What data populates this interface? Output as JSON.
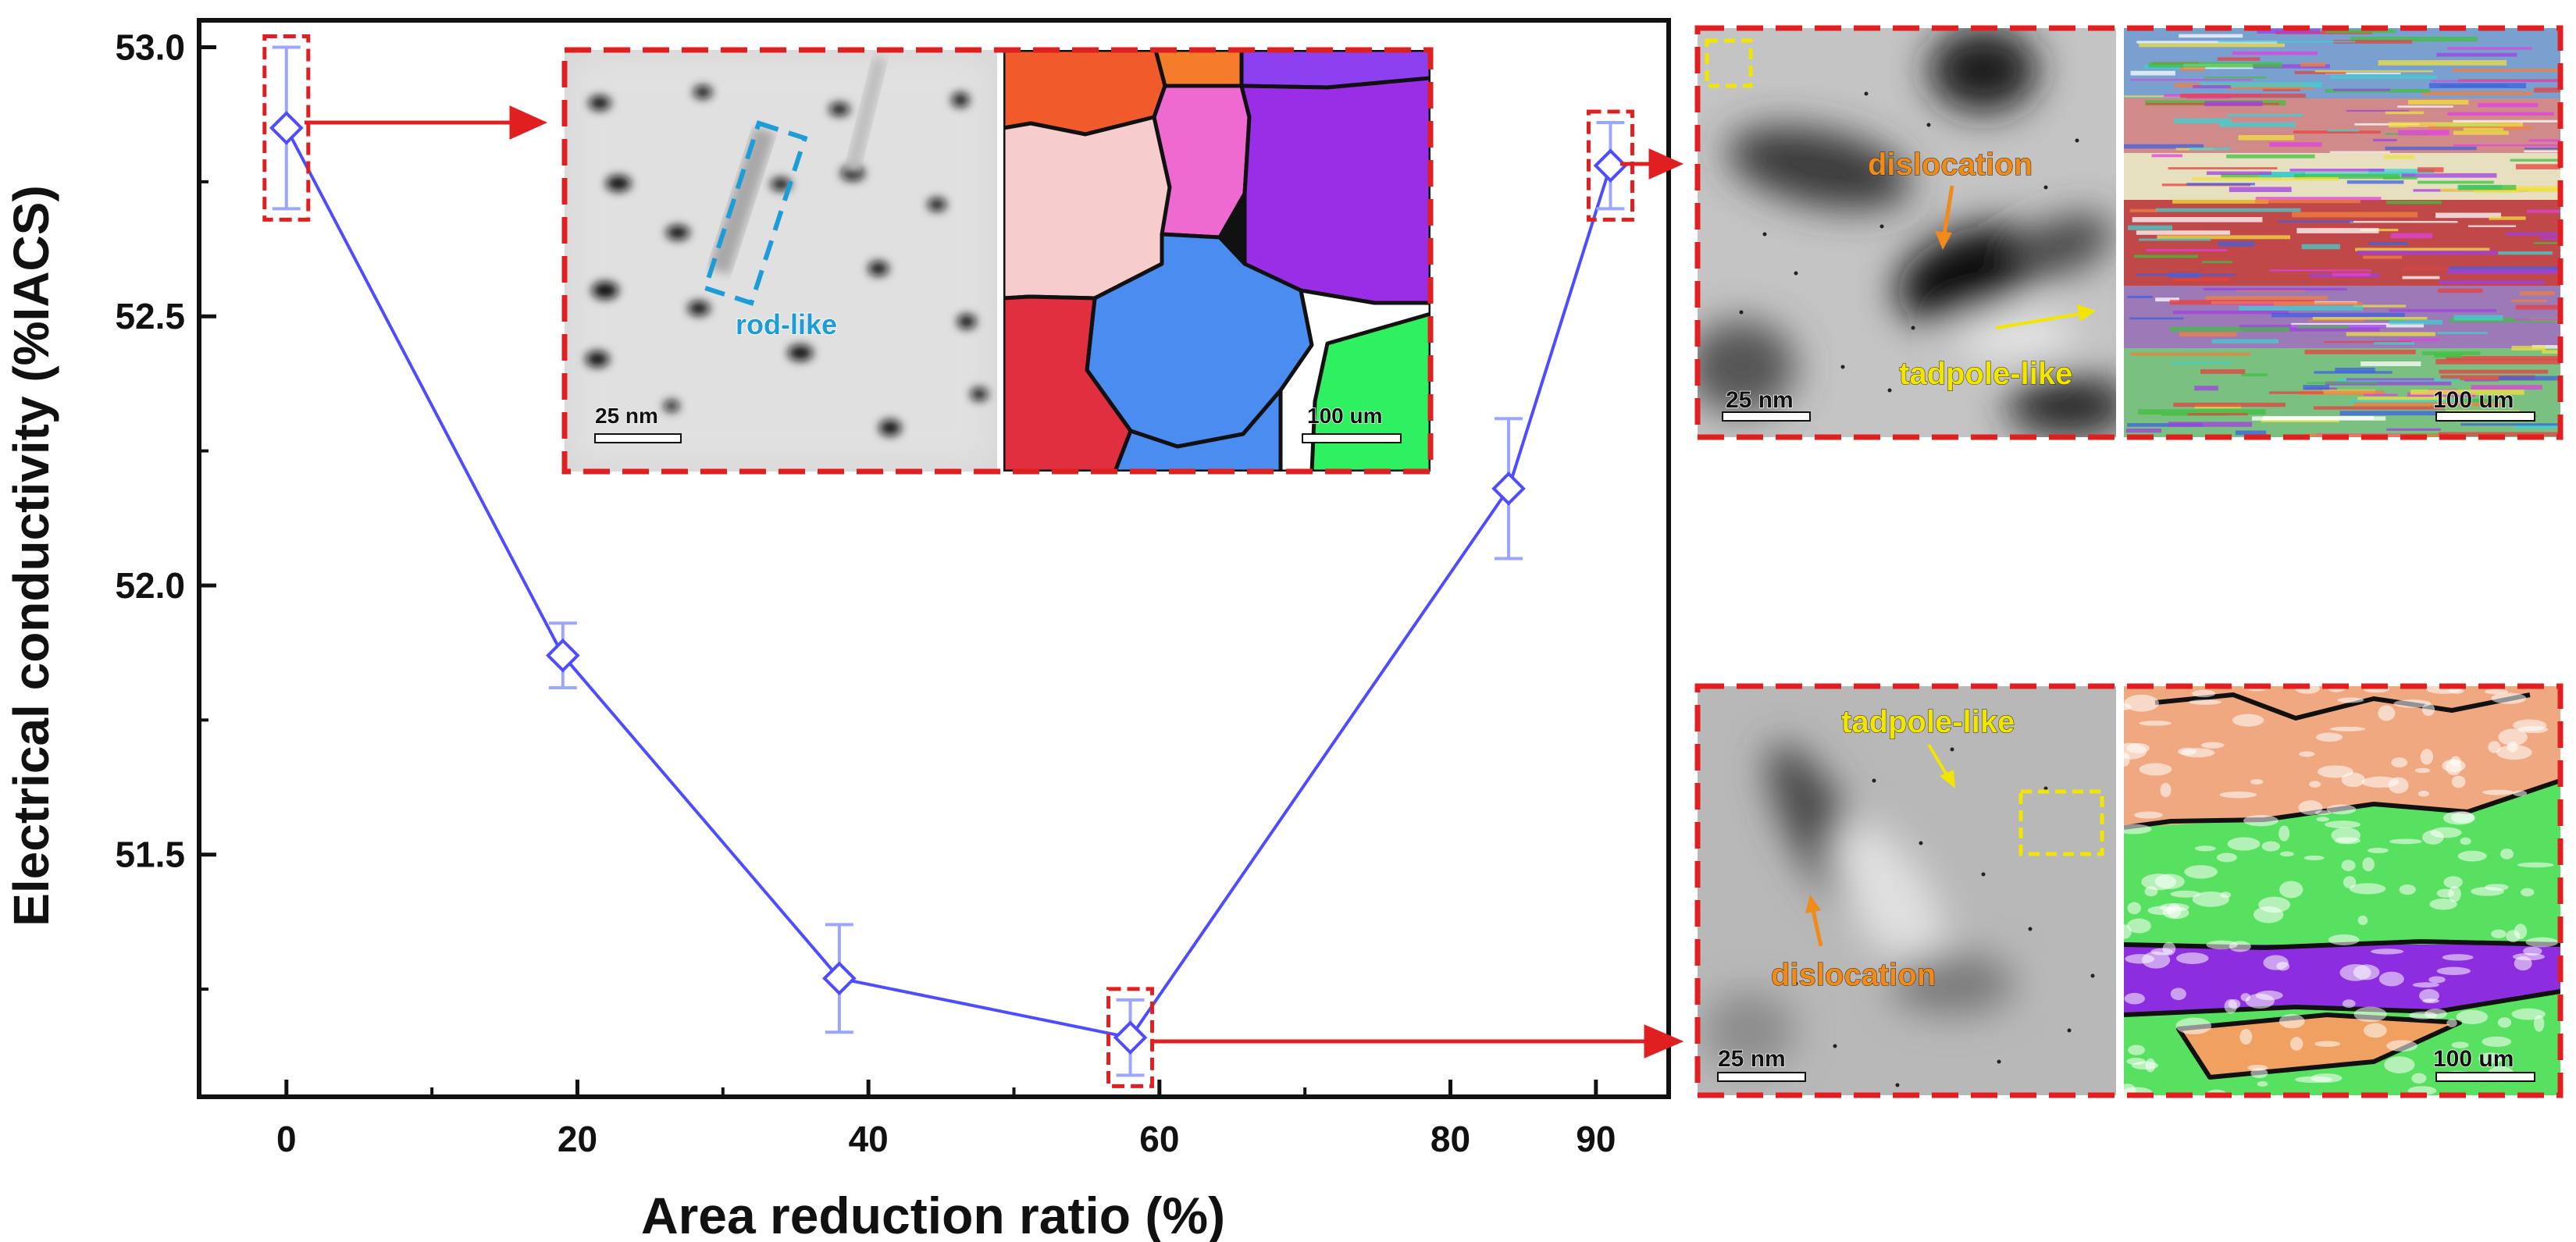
{
  "chart_data": {
    "type": "line",
    "title": "",
    "xlabel": "Area reduction ratio (%)",
    "ylabel": "Electrical conductivity (%IACS)",
    "xlim": [
      -6,
      95
    ],
    "ylim": [
      51.05,
      53.05
    ],
    "xticks": [
      0,
      20,
      40,
      60,
      80,
      90
    ],
    "xtick_labels": [
      "0",
      "20",
      "40",
      "60",
      "80",
      "90"
    ],
    "yticks": [
      51.5,
      52.0,
      52.5,
      53.0
    ],
    "ytick_labels": [
      "51.5",
      "52.0",
      "52.5",
      "53.0"
    ],
    "series": [
      {
        "color": "#4d4dff",
        "marker": "diamond",
        "points": [
          {
            "x": 0,
            "y": 52.85,
            "err": 0.15
          },
          {
            "x": 19,
            "y": 51.87,
            "err": 0.06
          },
          {
            "x": 38,
            "y": 51.27,
            "err": 0.1
          },
          {
            "x": 58,
            "y": 51.16,
            "err": 0.07
          },
          {
            "x": 84,
            "y": 52.18,
            "err": 0.13
          },
          {
            "x": 91,
            "y": 52.78,
            "err": 0.08
          }
        ]
      }
    ],
    "highlighted_points": [
      0,
      3,
      5
    ],
    "grid": false,
    "legend": "none",
    "insets": {
      "top_center": {
        "annotations": [
          "rod-like"
        ],
        "scale_bars": [
          "25 nm",
          "100 um"
        ]
      },
      "top_right": {
        "annotations": [
          "dislocation",
          "tadpole-like"
        ],
        "scale_bars": [
          "25 nm",
          "100 um"
        ]
      },
      "bottom_right": {
        "annotations": [
          "tadpole-like",
          "dislocation"
        ],
        "scale_bars": [
          "25 nm",
          "100 um"
        ]
      }
    }
  },
  "colors": {
    "line": "#4d4dff",
    "errorbar": "#9aa6ff",
    "highlight": "#e02020",
    "annot_blue": "#1e9cd8",
    "annot_orange": "#f08a18",
    "annot_yellow": "#f2e600"
  }
}
